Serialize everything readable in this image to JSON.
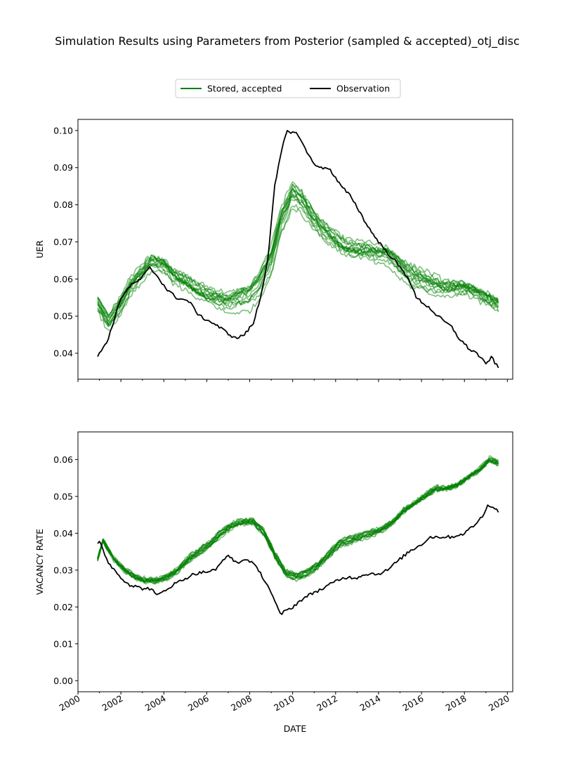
{
  "title": "Simulation Results using Parameters from Posterior (sampled & accepted)_otj_disc",
  "legend": {
    "placement": "top-center",
    "entries": [
      {
        "label": "Stored, accepted",
        "color": "#008000"
      },
      {
        "label": "Observation",
        "color": "#000000"
      }
    ]
  },
  "colors": {
    "simulation": "#008000",
    "observation": "#000000"
  },
  "chart_data": [
    {
      "type": "line",
      "xlabel": "",
      "ylabel": "UER",
      "xlim": [
        "2000-01",
        "2020-04"
      ],
      "ylim": [
        0.033,
        0.103
      ],
      "yticks": [
        "0.04",
        "0.05",
        "0.06",
        "0.07",
        "0.08",
        "0.09",
        "0.10"
      ],
      "xticks": [
        "2000",
        "2002",
        "2004",
        "2006",
        "2008",
        "2010",
        "2012",
        "2014",
        "2016",
        "2018",
        "2020"
      ],
      "observation": {
        "name": "Observation",
        "x": [
          "2000-12",
          "2001-06",
          "2002-01",
          "2002-06",
          "2002-12",
          "2003-05",
          "2003-09",
          "2004-03",
          "2004-08",
          "2005-03",
          "2005-09",
          "2006-05",
          "2006-11",
          "2007-05",
          "2007-10",
          "2008-03",
          "2008-07",
          "2008-11",
          "2009-03",
          "2009-07",
          "2009-10",
          "2010-04",
          "2010-09",
          "2011-03",
          "2011-09",
          "2012-04",
          "2012-10",
          "2013-06",
          "2013-10",
          "2014-06",
          "2014-10",
          "2015-06",
          "2015-10",
          "2016-06",
          "2016-10",
          "2017-06",
          "2017-10",
          "2018-04",
          "2018-08",
          "2019-01",
          "2019-04",
          "2019-08"
        ],
        "y": [
          0.039,
          0.044,
          0.055,
          0.058,
          0.06,
          0.063,
          0.061,
          0.057,
          0.055,
          0.054,
          0.05,
          0.048,
          0.046,
          0.044,
          0.045,
          0.048,
          0.055,
          0.065,
          0.085,
          0.095,
          0.1,
          0.099,
          0.094,
          0.09,
          0.09,
          0.085,
          0.082,
          0.075,
          0.072,
          0.067,
          0.065,
          0.06,
          0.055,
          0.052,
          0.05,
          0.047,
          0.044,
          0.041,
          0.04,
          0.037,
          0.039,
          0.036
        ]
      },
      "simulation_base": {
        "name": "Stored, accepted",
        "x": [
          "2000-12",
          "2001-06",
          "2002-01",
          "2002-06",
          "2003-01",
          "2003-06",
          "2004-01",
          "2004-06",
          "2005-01",
          "2005-06",
          "2006-01",
          "2006-06",
          "2007-01",
          "2007-06",
          "2008-01",
          "2008-06",
          "2009-01",
          "2009-06",
          "2010-01",
          "2010-06",
          "2011-01",
          "2011-06",
          "2012-01",
          "2012-06",
          "2013-01",
          "2013-06",
          "2014-01",
          "2014-06",
          "2015-01",
          "2015-06",
          "2016-01",
          "2016-06",
          "2017-01",
          "2017-06",
          "2018-01",
          "2018-06",
          "2019-01",
          "2019-08"
        ],
        "y": [
          0.053,
          0.048,
          0.053,
          0.058,
          0.062,
          0.065,
          0.064,
          0.061,
          0.059,
          0.057,
          0.055,
          0.054,
          0.053,
          0.054,
          0.055,
          0.058,
          0.065,
          0.075,
          0.083,
          0.081,
          0.076,
          0.073,
          0.07,
          0.068,
          0.067,
          0.067,
          0.066,
          0.066,
          0.063,
          0.061,
          0.06,
          0.059,
          0.058,
          0.058,
          0.058,
          0.057,
          0.055,
          0.053
        ]
      },
      "simulation_count": 14
    },
    {
      "type": "line",
      "xlabel": "DATE",
      "ylabel": "VACANCY RATE",
      "xlim": [
        "2000-01",
        "2020-04"
      ],
      "ylim": [
        -0.003,
        0.0675
      ],
      "yticks": [
        "0.00",
        "0.01",
        "0.02",
        "0.03",
        "0.04",
        "0.05",
        "0.06"
      ],
      "xticks": [
        "2000",
        "2002",
        "2004",
        "2006",
        "2008",
        "2010",
        "2012",
        "2014",
        "2016",
        "2018",
        "2020"
      ],
      "observation": {
        "name": "Observation",
        "x": [
          "2000-12",
          "2001-01",
          "2001-06",
          "2002-01",
          "2002-06",
          "2003-01",
          "2003-06",
          "2003-09",
          "2004-06",
          "2005-06",
          "2006-06",
          "2006-12",
          "2007-06",
          "2007-12",
          "2008-06",
          "2008-12",
          "2009-06",
          "2010-01",
          "2010-06",
          "2011-01",
          "2011-06",
          "2012-01",
          "2012-06",
          "2013-01",
          "2013-06",
          "2014-01",
          "2014-06",
          "2015-01",
          "2015-06",
          "2016-01",
          "2016-06",
          "2017-01",
          "2017-06",
          "2018-01",
          "2018-06",
          "2018-12",
          "2019-02",
          "2019-08"
        ],
        "y": [
          0.037,
          0.038,
          0.032,
          0.028,
          0.026,
          0.025,
          0.025,
          0.023,
          0.026,
          0.029,
          0.03,
          0.034,
          0.032,
          0.033,
          0.03,
          0.025,
          0.018,
          0.02,
          0.022,
          0.024,
          0.025,
          0.027,
          0.028,
          0.028,
          0.029,
          0.029,
          0.03,
          0.033,
          0.035,
          0.037,
          0.039,
          0.039,
          0.039,
          0.04,
          0.042,
          0.045,
          0.048,
          0.046
        ]
      },
      "simulation_base": {
        "name": "Stored, accepted",
        "x": [
          "2000-12",
          "2001-03",
          "2001-09",
          "2002-03",
          "2002-09",
          "2003-03",
          "2003-09",
          "2004-03",
          "2004-09",
          "2005-03",
          "2005-09",
          "2006-03",
          "2006-09",
          "2007-03",
          "2007-09",
          "2008-03",
          "2008-09",
          "2009-03",
          "2009-09",
          "2010-03",
          "2010-09",
          "2011-03",
          "2011-09",
          "2012-03",
          "2012-09",
          "2013-03",
          "2013-09",
          "2014-03",
          "2014-09",
          "2015-03",
          "2015-09",
          "2016-03",
          "2016-09",
          "2017-03",
          "2017-09",
          "2018-03",
          "2018-09",
          "2019-03",
          "2019-08"
        ],
        "y": [
          0.033,
          0.038,
          0.033,
          0.03,
          0.028,
          0.027,
          0.027,
          0.028,
          0.03,
          0.033,
          0.035,
          0.037,
          0.04,
          0.042,
          0.043,
          0.043,
          0.04,
          0.034,
          0.029,
          0.028,
          0.029,
          0.031,
          0.034,
          0.037,
          0.038,
          0.039,
          0.04,
          0.041,
          0.043,
          0.046,
          0.048,
          0.05,
          0.052,
          0.052,
          0.053,
          0.055,
          0.057,
          0.06,
          0.059
        ]
      },
      "simulation_count": 14
    }
  ]
}
